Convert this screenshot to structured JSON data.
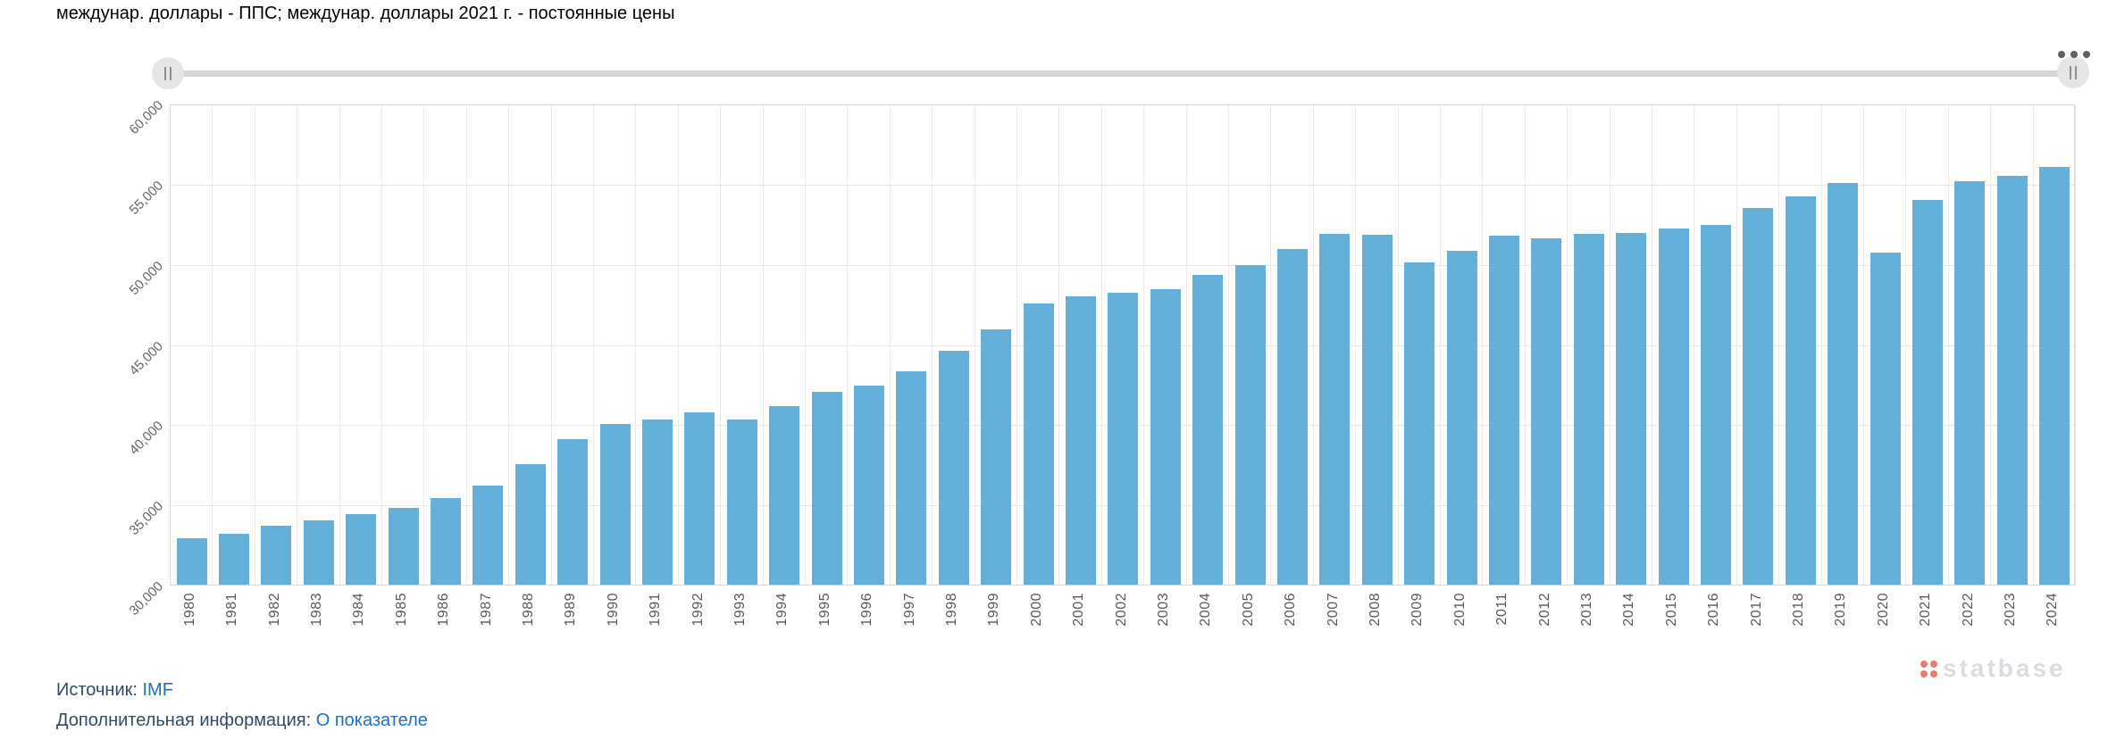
{
  "header": {
    "title": "междунар. доллары - ППС; междунар. доллары 2021 г. - постоянные цены"
  },
  "range_slider": {
    "left_handle_icon": "drag-handle",
    "right_handle_icon": "drag-handle",
    "more_options_icon": "three-dots-menu"
  },
  "chart_data": {
    "type": "bar",
    "title": "междунар. доллары - ППС; междунар. доллары 2021 г. - постоянные цены",
    "categories": [
      "1980",
      "1981",
      "1982",
      "1983",
      "1984",
      "1985",
      "1986",
      "1987",
      "1988",
      "1989",
      "1990",
      "1991",
      "1992",
      "1993",
      "1994",
      "1995",
      "1996",
      "1997",
      "1998",
      "1999",
      "2000",
      "2001",
      "2002",
      "2003",
      "2004",
      "2005",
      "2006",
      "2007",
      "2008",
      "2009",
      "2010",
      "2011",
      "2012",
      "2013",
      "2014",
      "2015",
      "2016",
      "2017",
      "2018",
      "2019",
      "2020",
      "2021",
      "2022",
      "2023",
      "2024"
    ],
    "values": [
      32900,
      33150,
      33700,
      34000,
      34400,
      34800,
      35400,
      36200,
      37500,
      39100,
      40000,
      40300,
      40750,
      40300,
      41150,
      42000,
      42400,
      43300,
      44600,
      45900,
      47550,
      48000,
      48200,
      48400,
      49300,
      49900,
      50950,
      51900,
      51800,
      50100,
      50800,
      51750,
      51600,
      51850,
      51950,
      52200,
      52450,
      53500,
      54200,
      55050,
      50700,
      54000,
      55150,
      55500,
      56050
    ],
    "xlabel": "",
    "ylabel": "",
    "ylim": [
      30000,
      60000
    ],
    "ytick_labels": [
      "30,000",
      "35,000",
      "40,000",
      "45,000",
      "50,000",
      "55,000",
      "60,000"
    ],
    "grid": true,
    "legend_position": "none",
    "bar_color": "#63b1d9"
  },
  "watermark": {
    "dots_icon": "statbase-logo-dots",
    "text": "statbase"
  },
  "footer": {
    "source_label": "Источник:",
    "source_link": "IMF",
    "info_label": "Дополнительная информация:",
    "info_link": "О показателе"
  },
  "colors": {
    "bar": "#63b1d9",
    "title_text": "#33587c",
    "axis_text": "#666666",
    "link": "#1c6fc5",
    "gridline": "#e6e6e6",
    "slider_track": "#d5d5d5",
    "watermark_text": "#d9dce3",
    "watermark_dots": "#e57a7a"
  }
}
